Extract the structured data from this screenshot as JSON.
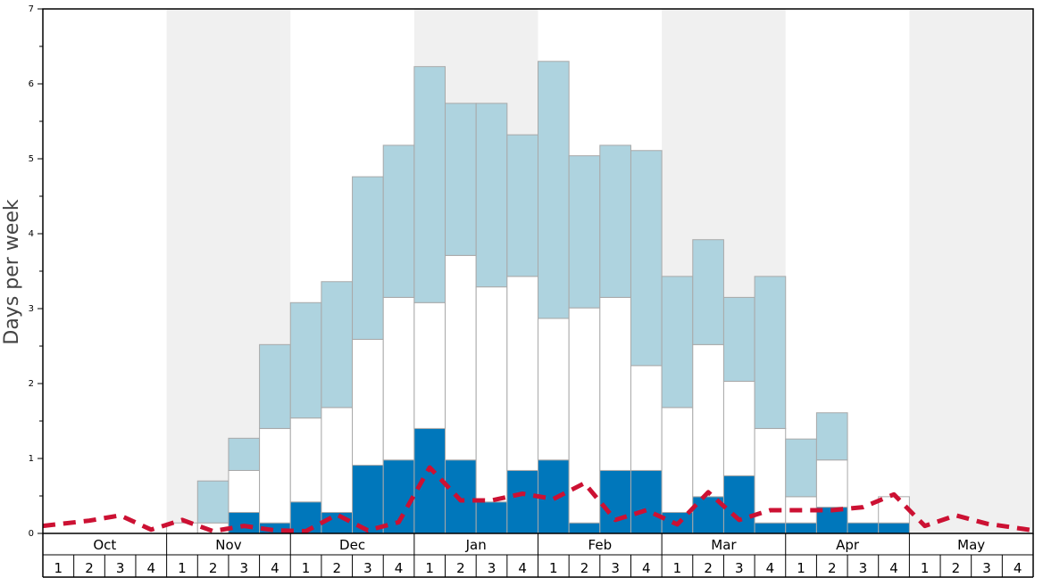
{
  "chart_data": {
    "type": "bar",
    "ylabel": "Days per week",
    "ylim": [
      0,
      7
    ],
    "yticks": [
      "0",
      "1",
      "2",
      "3",
      "4",
      "5",
      "6",
      "7"
    ],
    "months": [
      "Oct",
      "Nov",
      "Dec",
      "Jan",
      "Feb",
      "Mar",
      "Apr",
      "May"
    ],
    "weeks": [
      "1",
      "2",
      "3",
      "4"
    ],
    "stacked": true,
    "series": [
      {
        "color": "#0077bb",
        "values": [
          0,
          0,
          0,
          0,
          0,
          0,
          0.28,
          0.14,
          0.42,
          0.28,
          0.91,
          0.98,
          1.4,
          0.98,
          0.42,
          0.84,
          0.98,
          0.14,
          0.84,
          0.84,
          0.28,
          0.49,
          0.77,
          0.14,
          0.14,
          0.35,
          0.14,
          0.14,
          0,
          0,
          0,
          0
        ]
      },
      {
        "color": "#ffffff",
        "values": [
          0,
          0,
          0,
          0,
          0.14,
          0.14,
          0.56,
          1.26,
          1.12,
          1.4,
          1.68,
          2.17,
          1.68,
          2.73,
          2.87,
          2.59,
          1.89,
          2.87,
          2.31,
          1.4,
          1.4,
          2.03,
          1.26,
          1.26,
          0.35,
          0.63,
          0,
          0.35,
          0,
          0,
          0,
          0
        ]
      },
      {
        "color": "#aed3df",
        "values": [
          0,
          0,
          0,
          0,
          0,
          0.56,
          0.43,
          1.12,
          1.54,
          1.68,
          2.17,
          2.03,
          3.15,
          2.03,
          2.45,
          1.89,
          3.43,
          2.03,
          2.03,
          2.87,
          1.75,
          1.4,
          1.12,
          2.03,
          0.77,
          0.63,
          0,
          0,
          0,
          0,
          0,
          0
        ]
      },
      {
        "type": "line",
        "color": "#cc1133",
        "dashed": true,
        "values": [
          0.1,
          0.17,
          0.24,
          0.05,
          0.18,
          0.03,
          0.1,
          0.04,
          0.03,
          0.25,
          0.04,
          0.15,
          0.88,
          0.44,
          0.44,
          0.53,
          0.46,
          0.67,
          0.18,
          0.31,
          0.12,
          0.55,
          0.18,
          0.31,
          0.31,
          0.31,
          0.35,
          0.52,
          0.1,
          0.24,
          0.13,
          0.04
        ]
      }
    ],
    "shading": {
      "shaded_months": [
        1,
        3,
        5,
        7
      ],
      "shade_color": "#f0f0f0"
    },
    "grid": false,
    "legend": "none"
  }
}
